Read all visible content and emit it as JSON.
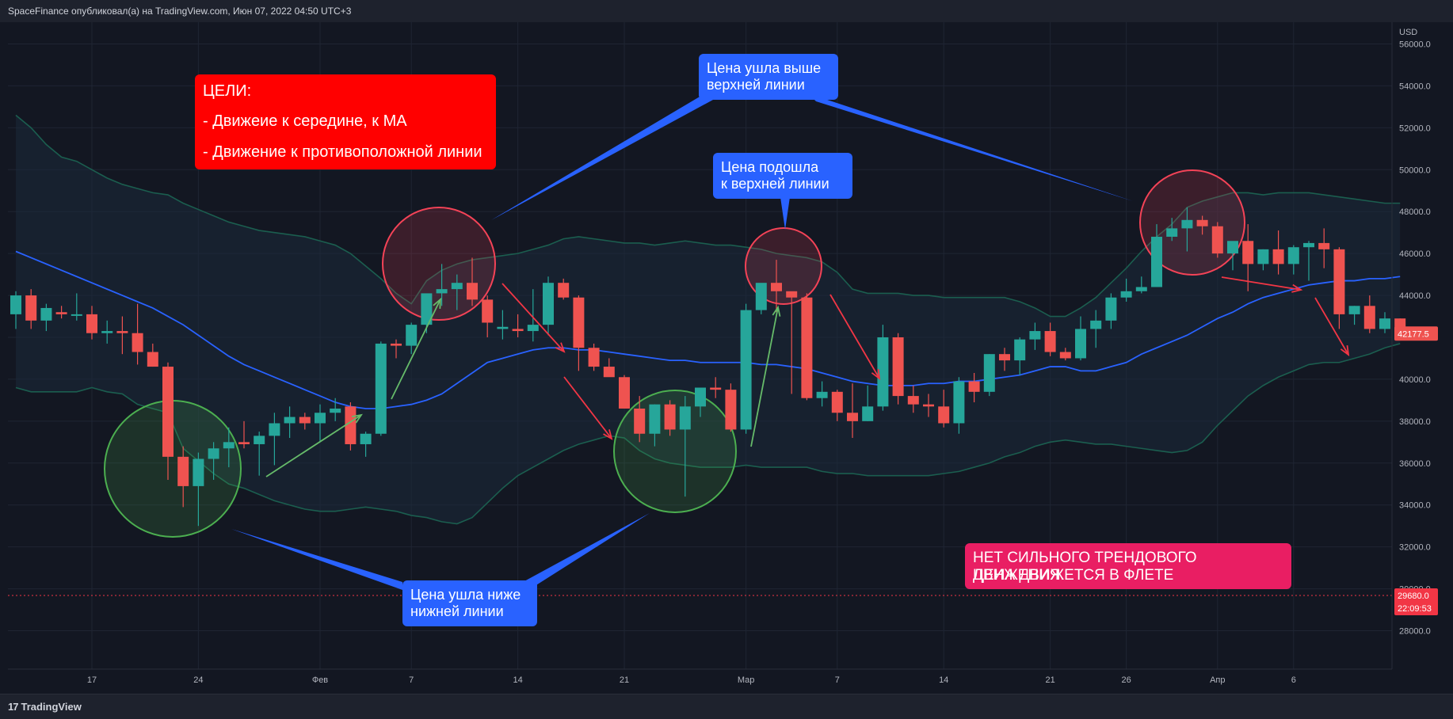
{
  "header": {
    "published": "SpaceFinance опубликовал(а) на TradingView.com, Июн 07, 2022 04:50 UTC+3"
  },
  "footer": {
    "logo_mark": "17",
    "logo_text": "TradingView"
  },
  "annotations": {
    "goals": {
      "title": "ЦЕЛИ:",
      "line1": "- Движеие к середине, к МА",
      "line2": "- Движение к противоположной линии"
    },
    "above_upper": "Цена ушла выше\nверхней линии",
    "near_upper": "Цена подошла\nк верхней линии",
    "below_lower": "Цена ушла ниже\nнижней линии",
    "flat_line1": "НЕТ СИЛЬНОГО ТРЕНДОВОГО ДВИЖЕНИЯ.",
    "flat_line2": "ЦЕНА ДВИЖЕТСЯ В ФЛЕТЕ"
  },
  "chart_data": {
    "type": "candlestick",
    "currency": "USD",
    "ylim": [
      26000,
      57000
    ],
    "y_ticks": [
      28000,
      30000,
      32000,
      34000,
      36000,
      38000,
      40000,
      42000,
      44000,
      46000,
      48000,
      50000,
      52000,
      54000,
      56000
    ],
    "x_ticks": [
      {
        "label": "17",
        "index": 5
      },
      {
        "label": "24",
        "index": 12
      },
      {
        "label": "Фев",
        "index": 20
      },
      {
        "label": "7",
        "index": 26
      },
      {
        "label": "14",
        "index": 33
      },
      {
        "label": "21",
        "index": 40
      },
      {
        "label": "Мар",
        "index": 48
      },
      {
        "label": "7",
        "index": 54
      },
      {
        "label": "14",
        "index": 61
      },
      {
        "label": "21",
        "index": 68
      },
      {
        "label": "26",
        "index": 73
      },
      {
        "label": "Апр",
        "index": 79
      },
      {
        "label": "6",
        "index": 84
      }
    ],
    "last_price": {
      "label": "42177.5",
      "value": 42177.5
    },
    "marker_price": {
      "label": "29680.0",
      "time": "22:09:53",
      "value": 29680
    },
    "colors": {
      "up": "#26a69a",
      "down": "#ef5350",
      "ma": "#2962ff",
      "band": "#1b5e4f"
    },
    "candles": [
      [
        43100,
        44200,
        42400,
        44000
      ],
      [
        44000,
        44300,
        42400,
        42800
      ],
      [
        42800,
        43600,
        42300,
        43400
      ],
      [
        43200,
        43500,
        42900,
        43100
      ],
      [
        43100,
        44100,
        42800,
        43100
      ],
      [
        43100,
        43500,
        41900,
        42200
      ],
      [
        42200,
        42800,
        41700,
        42300
      ],
      [
        42300,
        43000,
        41200,
        42200
      ],
      [
        42200,
        43600,
        40700,
        41300
      ],
      [
        41300,
        41700,
        40600,
        40600
      ],
      [
        40600,
        40800,
        35200,
        36300
      ],
      [
        36300,
        36800,
        33900,
        34900
      ],
      [
        34900,
        36500,
        33000,
        36200
      ],
      [
        36200,
        37000,
        35200,
        36700
      ],
      [
        36700,
        37700,
        35800,
        37000
      ],
      [
        37000,
        38000,
        36700,
        36900
      ],
      [
        36900,
        37500,
        35400,
        37300
      ],
      [
        37300,
        38400,
        35900,
        37900
      ],
      [
        37900,
        38700,
        37200,
        38200
      ],
      [
        38200,
        38400,
        37600,
        37900
      ],
      [
        37900,
        38800,
        37000,
        38400
      ],
      [
        38400,
        39100,
        38000,
        38600
      ],
      [
        38700,
        38900,
        36600,
        36900
      ],
      [
        36900,
        37500,
        36300,
        37400
      ],
      [
        37400,
        41800,
        37300,
        41700
      ],
      [
        41700,
        41900,
        41000,
        41600
      ],
      [
        41600,
        42700,
        41200,
        42600
      ],
      [
        42600,
        44000,
        42200,
        44100
      ],
      [
        44100,
        45500,
        43500,
        44300
      ],
      [
        44300,
        45000,
        43300,
        44600
      ],
      [
        44600,
        45800,
        43500,
        43800
      ],
      [
        43800,
        44000,
        42000,
        42700
      ],
      [
        42400,
        43300,
        41900,
        42500
      ],
      [
        42400,
        43100,
        42000,
        42300
      ],
      [
        42300,
        44300,
        41800,
        42600
      ],
      [
        42600,
        44900,
        42100,
        44600
      ],
      [
        44600,
        44800,
        43800,
        43900
      ],
      [
        43900,
        44000,
        40400,
        41500
      ],
      [
        41500,
        41700,
        40400,
        40600
      ],
      [
        40600,
        41000,
        40200,
        40100
      ],
      [
        40100,
        40200,
        38600,
        38600
      ],
      [
        38600,
        39200,
        37000,
        37400
      ],
      [
        37400,
        38800,
        36800,
        38800
      ],
      [
        38800,
        39000,
        37300,
        37600
      ],
      [
        37600,
        39200,
        34400,
        38700
      ],
      [
        38700,
        39500,
        38200,
        39600
      ],
      [
        39600,
        40100,
        39100,
        39500
      ],
      [
        39500,
        39800,
        37500,
        37600
      ],
      [
        37600,
        43600,
        37400,
        43300
      ],
      [
        43300,
        44300,
        43100,
        44600
      ],
      [
        44600,
        45700,
        43200,
        44200
      ],
      [
        44200,
        44000,
        39300,
        43900
      ],
      [
        43900,
        44100,
        39000,
        39100
      ],
      [
        39100,
        39900,
        38700,
        39400
      ],
      [
        39400,
        39500,
        38000,
        38400
      ],
      [
        38400,
        39800,
        37200,
        38000
      ],
      [
        38000,
        39700,
        38000,
        38700
      ],
      [
        38700,
        42600,
        38500,
        42000
      ],
      [
        42000,
        42200,
        38800,
        39200
      ],
      [
        39200,
        39700,
        38400,
        38800
      ],
      [
        38800,
        39300,
        38200,
        38700
      ],
      [
        38700,
        39500,
        37700,
        37900
      ],
      [
        37900,
        40100,
        37400,
        39900
      ],
      [
        39900,
        40300,
        38900,
        39400
      ],
      [
        39400,
        41200,
        39200,
        41200
      ],
      [
        41200,
        41500,
        40400,
        40900
      ],
      [
        40900,
        42000,
        40200,
        41900
      ],
      [
        41900,
        42700,
        41400,
        42300
      ],
      [
        42300,
        42700,
        41100,
        41300
      ],
      [
        41300,
        41500,
        40900,
        41000
      ],
      [
        41000,
        43000,
        40900,
        42400
      ],
      [
        42400,
        43300,
        41500,
        42800
      ],
      [
        42800,
        44100,
        42400,
        43900
      ],
      [
        43900,
        44800,
        43700,
        44200
      ],
      [
        44200,
        44900,
        44100,
        44400
      ],
      [
        44400,
        47400,
        44400,
        46800
      ],
      [
        46800,
        47700,
        46600,
        47200
      ],
      [
        47200,
        48200,
        46100,
        47600
      ],
      [
        47600,
        47800,
        46900,
        47300
      ],
      [
        47300,
        47500,
        45800,
        46000
      ],
      [
        46000,
        46300,
        45200,
        46600
      ],
      [
        46600,
        47400,
        44200,
        45500
      ],
      [
        45500,
        46200,
        45200,
        46200
      ],
      [
        46200,
        47100,
        45000,
        45500
      ],
      [
        45500,
        46400,
        45000,
        46300
      ],
      [
        46300,
        46600,
        44700,
        46500
      ],
      [
        46500,
        47200,
        45300,
        46200
      ],
      [
        46200,
        46300,
        42400,
        43100
      ],
      [
        43100,
        43500,
        42600,
        43500
      ],
      [
        43500,
        44000,
        42200,
        42400
      ],
      [
        42400,
        43200,
        42200,
        42900
      ],
      [
        42900,
        42900,
        42100,
        42177.5
      ]
    ],
    "ma": [
      46100,
      45800,
      45500,
      45200,
      44900,
      44600,
      44300,
      44000,
      43700,
      43400,
      43000,
      42600,
      42100,
      41600,
      41100,
      40700,
      40400,
      40100,
      39800,
      39500,
      39200,
      38900,
      38700,
      38600,
      38600,
      38700,
      38800,
      39000,
      39300,
      39800,
      40300,
      40800,
      41000,
      41200,
      41400,
      41500,
      41500,
      41400,
      41400,
      41300,
      41200,
      41100,
      41000,
      40900,
      40900,
      40800,
      40800,
      40800,
      40800,
      40700,
      40700,
      40600,
      40500,
      40300,
      40100,
      39900,
      39800,
      39700,
      39700,
      39700,
      39800,
      39800,
      39900,
      39900,
      40000,
      40100,
      40200,
      40400,
      40600,
      40600,
      40400,
      40400,
      40600,
      40800,
      41200,
      41500,
      41800,
      42100,
      42500,
      42900,
      43200,
      43600,
      43900,
      44100,
      44300,
      44500,
      44600,
      44700,
      44700,
      44800,
      44800,
      44900
    ],
    "upper": [
      52600,
      52000,
      51200,
      50600,
      50400,
      50000,
      49600,
      49300,
      49100,
      48900,
      48800,
      48400,
      48100,
      47800,
      47500,
      47300,
      47100,
      47000,
      46900,
      46800,
      46600,
      46400,
      46000,
      45400,
      44800,
      44100,
      43600,
      44700,
      45200,
      45500,
      45700,
      45800,
      45900,
      46000,
      46200,
      46400,
      46700,
      46800,
      46700,
      46600,
      46500,
      46500,
      46400,
      46500,
      46600,
      46500,
      46400,
      46400,
      46300,
      46200,
      46000,
      45900,
      45800,
      45600,
      45100,
      44300,
      44100,
      44100,
      44100,
      44000,
      44000,
      43900,
      43900,
      43900,
      43900,
      43900,
      43700,
      43400,
      43000,
      43000,
      43400,
      43900,
      44600,
      45300,
      46100,
      46800,
      47400,
      48200,
      48500,
      48700,
      48900,
      48900,
      48800,
      48900,
      48900,
      48900,
      48800,
      48700,
      48600,
      48500,
      48400,
      48400
    ],
    "lower": [
      39600,
      39400,
      39400,
      39400,
      39400,
      39600,
      39400,
      39300,
      38800,
      38600,
      38400,
      36700,
      36100,
      35500,
      35000,
      34800,
      34500,
      34200,
      34000,
      33800,
      33700,
      33700,
      33800,
      33900,
      33800,
      33700,
      33500,
      33400,
      33200,
      33100,
      33400,
      34100,
      34800,
      35400,
      35800,
      36200,
      36600,
      36900,
      37100,
      37300,
      37200,
      36600,
      36200,
      36000,
      35900,
      35800,
      35800,
      35800,
      35900,
      35800,
      35800,
      35800,
      35800,
      35600,
      35500,
      35500,
      35400,
      35400,
      35400,
      35400,
      35400,
      35500,
      35600,
      35800,
      36000,
      36300,
      36500,
      36800,
      37000,
      37100,
      37000,
      36900,
      36900,
      36800,
      36700,
      36600,
      36500,
      36600,
      37000,
      37800,
      38500,
      39200,
      39700,
      40100,
      40400,
      40700,
      40800,
      40800,
      41000,
      41200,
      41500,
      41700
    ]
  }
}
